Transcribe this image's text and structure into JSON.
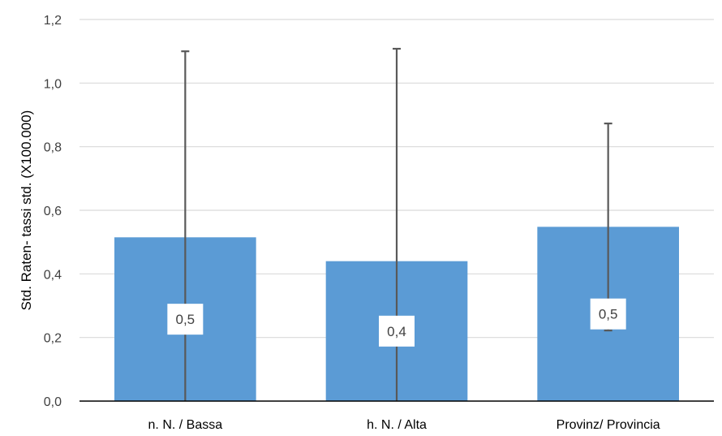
{
  "chart_data": {
    "type": "bar",
    "categories": [
      "n. N. / Bassa",
      "h. N. / Alta",
      "Provinz/ Provincia"
    ],
    "values": [
      0.515,
      0.44,
      0.548
    ],
    "data_labels": [
      "0,5",
      "0,4",
      "0,5"
    ],
    "error_bars": [
      {
        "low": 0.0,
        "high": 1.1
      },
      {
        "low": 0.0,
        "high": 1.108
      },
      {
        "low": 0.222,
        "high": 0.873
      }
    ],
    "title": "",
    "xlabel": "",
    "ylabel": "Std. Raten- tassi std. (X100.000)",
    "ylim": [
      0,
      1.2
    ],
    "yticks": [
      0.0,
      0.2,
      0.4,
      0.6,
      0.8,
      1.0,
      1.2
    ],
    "ytick_labels": [
      "0,0",
      "0,2",
      "0,4",
      "0,6",
      "0,8",
      "1,0",
      "1,2"
    ],
    "grid": true,
    "legend": "none",
    "colors": {
      "bar": "#5b9bd5",
      "error_bar": "#595959",
      "grid": "#d9d9d9",
      "axis": "#000000"
    }
  }
}
